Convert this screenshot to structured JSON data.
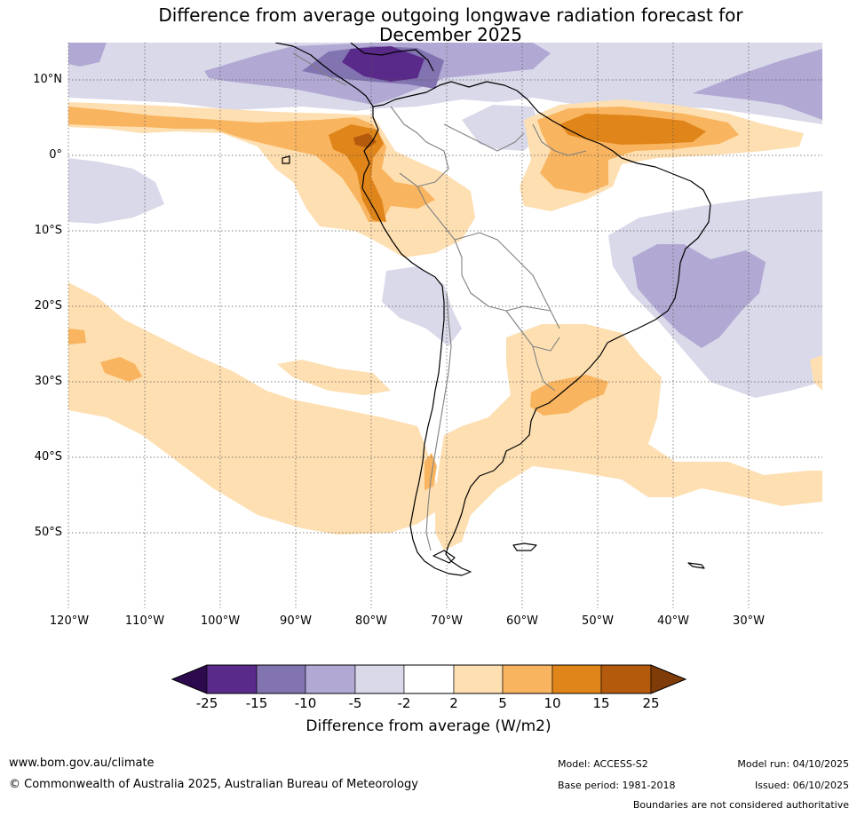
{
  "title_line1": "Difference from average outgoing longwave radiation forecast for",
  "title_line2": "December 2025",
  "lat_labels": [
    "10°N",
    "0°",
    "10°S",
    "20°S",
    "30°S",
    "40°S",
    "50°S"
  ],
  "lon_labels": [
    "120°W",
    "110°W",
    "100°W",
    "90°W",
    "80°W",
    "70°W",
    "60°W",
    "50°W",
    "40°W",
    "30°W"
  ],
  "colorbar": {
    "ticks": [
      "-25",
      "-15",
      "-10",
      "-5",
      "-2",
      "2",
      "5",
      "10",
      "15",
      "25"
    ],
    "colors": [
      "#2d0a4e",
      "#5a2a8a",
      "#8273b1",
      "#b1a9d3",
      "#d9d9ea",
      "#ffffff",
      "#fddfb2",
      "#f9b45f",
      "#e08519",
      "#b45a0c",
      "#7f3b08"
    ],
    "label": "Difference from average (W/m2)"
  },
  "footer": {
    "website": "www.bom.gov.au/climate",
    "copyright": "© Commonwealth of Australia 2025, Australian Bureau of Meteorology",
    "model": "Model: ACCESS-S2",
    "model_run": "Model run: 04/10/2025",
    "base_period": "Base period: 1981-2018",
    "issued": "Issued: 06/10/2025",
    "boundaries": "Boundaries are not considered authoritative"
  }
}
